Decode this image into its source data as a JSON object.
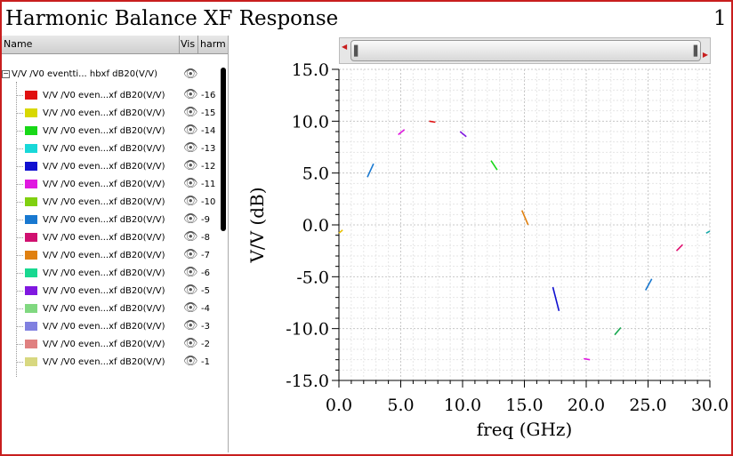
{
  "window": {
    "title": "Harmonic Balance XF Response",
    "page_number": "1"
  },
  "legend_panel": {
    "columns": {
      "name": "Name",
      "vis": "Vis",
      "harm": "harm"
    },
    "root_label": "V/V /V0 eventti... hbxf dB20(V/V)",
    "items": [
      {
        "label": "V/V /V0 even...xf dB20(V/V)",
        "harm": "-16",
        "color": "#e01010"
      },
      {
        "label": "V/V /V0 even...xf dB20(V/V)",
        "harm": "-15",
        "color": "#d8d800"
      },
      {
        "label": "V/V /V0 even...xf dB20(V/V)",
        "harm": "-14",
        "color": "#18d818"
      },
      {
        "label": "V/V /V0 even...xf dB20(V/V)",
        "harm": "-13",
        "color": "#18d8d8"
      },
      {
        "label": "V/V /V0 even...xf dB20(V/V)",
        "harm": "-12",
        "color": "#1010d0"
      },
      {
        "label": "V/V /V0 even...xf dB20(V/V)",
        "harm": "-11",
        "color": "#e018e0"
      },
      {
        "label": "V/V /V0 even...xf dB20(V/V)",
        "harm": "-10",
        "color": "#80d010"
      },
      {
        "label": "V/V /V0 even...xf dB20(V/V)",
        "harm": "-9",
        "color": "#1878d0"
      },
      {
        "label": "V/V /V0 even...xf dB20(V/V)",
        "harm": "-8",
        "color": "#d01070"
      },
      {
        "label": "V/V /V0 even...xf dB20(V/V)",
        "harm": "-7",
        "color": "#e08010"
      },
      {
        "label": "V/V /V0 even...xf dB20(V/V)",
        "harm": "-6",
        "color": "#18d890"
      },
      {
        "label": "V/V /V0 even...xf dB20(V/V)",
        "harm": "-5",
        "color": "#8018e0"
      },
      {
        "label": "V/V /V0 even...xf dB20(V/V)",
        "harm": "-4",
        "color": "#80d880"
      },
      {
        "label": "V/V /V0 even...xf dB20(V/V)",
        "harm": "-3",
        "color": "#8080e0"
      },
      {
        "label": "V/V /V0 even...xf dB20(V/V)",
        "harm": "-2",
        "color": "#e08080"
      },
      {
        "label": "V/V /V0 even...xf dB20(V/V)",
        "harm": "-1",
        "color": "#d8d880"
      }
    ]
  },
  "chart_data": {
    "type": "line",
    "xlabel": "freq (GHz)",
    "ylabel": "V/V (dB)",
    "xlim": [
      0,
      30
    ],
    "ylim": [
      -15,
      15
    ],
    "xticks": [
      "0.0",
      "5.0",
      "10.0",
      "15.0",
      "20.0",
      "25.0",
      "30.0"
    ],
    "yticks": [
      "15.0",
      "10.0",
      "5.0",
      "0.0",
      "-5.0",
      "-10.0",
      "-15.0"
    ],
    "grid": true,
    "series": [
      {
        "color": "#e8c000",
        "points": [
          [
            0.0,
            -0.8
          ],
          [
            0.3,
            -0.5
          ]
        ]
      },
      {
        "color": "#1878d0",
        "points": [
          [
            2.3,
            4.6
          ],
          [
            2.8,
            5.9
          ]
        ]
      },
      {
        "color": "#e018e0",
        "points": [
          [
            4.8,
            8.7
          ],
          [
            5.3,
            9.2
          ]
        ]
      },
      {
        "color": "#e01010",
        "points": [
          [
            7.3,
            10.0
          ],
          [
            7.8,
            9.9
          ]
        ]
      },
      {
        "color": "#8018e0",
        "points": [
          [
            9.8,
            9.0
          ],
          [
            10.3,
            8.5
          ]
        ]
      },
      {
        "color": "#18d818",
        "points": [
          [
            12.3,
            6.2
          ],
          [
            12.8,
            5.3
          ]
        ]
      },
      {
        "color": "#e08010",
        "points": [
          [
            14.8,
            1.4
          ],
          [
            15.3,
            0.0
          ]
        ]
      },
      {
        "color": "#1010d0",
        "points": [
          [
            17.3,
            -6.0
          ],
          [
            17.8,
            -8.3
          ]
        ]
      },
      {
        "color": "#e018e0",
        "points": [
          [
            19.8,
            -12.9
          ],
          [
            20.3,
            -13.0
          ]
        ]
      },
      {
        "color": "#18a850",
        "points": [
          [
            22.3,
            -10.6
          ],
          [
            22.8,
            -9.9
          ]
        ]
      },
      {
        "color": "#1878d0",
        "points": [
          [
            24.8,
            -6.3
          ],
          [
            25.3,
            -5.2
          ]
        ]
      },
      {
        "color": "#e01070",
        "points": [
          [
            27.3,
            -2.5
          ],
          [
            27.8,
            -1.9
          ]
        ]
      },
      {
        "color": "#18a8a8",
        "points": [
          [
            29.7,
            -0.8
          ],
          [
            30.0,
            -0.6
          ]
        ]
      }
    ]
  }
}
